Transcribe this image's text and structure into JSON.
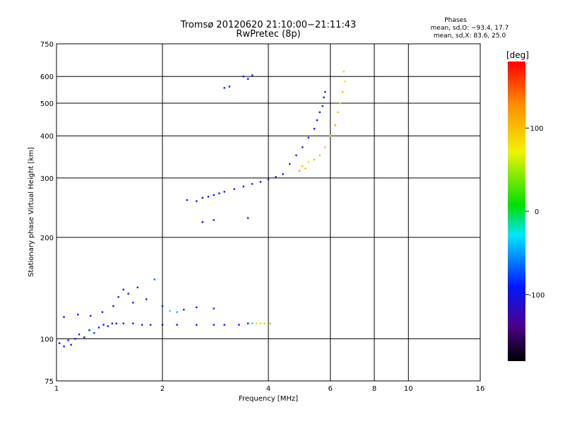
{
  "chart_data": {
    "type": "scatter",
    "title": "Tromsø 20120620 21:10:00−21:11:43",
    "subtitle": "RwPretec (8p)",
    "xlabel": "Frequency [MHz]",
    "ylabel": "Stationary phase Virtual Height [km]",
    "x_scale": "log",
    "y_scale": "log",
    "xlim": [
      1,
      16
    ],
    "ylim": [
      75,
      750
    ],
    "x_ticks": [
      1,
      2,
      4,
      6,
      8,
      10,
      16
    ],
    "y_ticks": [
      75,
      100,
      200,
      300,
      400,
      500,
      600,
      750
    ],
    "grid": true,
    "stats_box": {
      "title": "Phases",
      "line1": "mean, sd,O: −93.4, 17.7",
      "line2": "mean, sd,X:  83.6, 25.0"
    },
    "colorbar": {
      "label": "[deg]",
      "ticks": [
        100,
        0,
        -100
      ],
      "range": [
        -180,
        180
      ]
    },
    "series": [
      {
        "points": [
          [
            1.02,
            97,
            -90
          ],
          [
            1.05,
            95,
            -100
          ],
          [
            1.08,
            99,
            -85
          ],
          [
            1.1,
            96,
            -95
          ],
          [
            1.13,
            100,
            -92
          ],
          [
            1.16,
            103,
            -88
          ],
          [
            1.2,
            101,
            -100
          ],
          [
            1.24,
            106,
            -90
          ],
          [
            1.28,
            104,
            -80
          ],
          [
            1.32,
            108,
            -95
          ],
          [
            1.36,
            110,
            -98
          ],
          [
            1.4,
            109,
            -90
          ],
          [
            1.44,
            111,
            -95
          ],
          [
            1.48,
            111,
            -100
          ],
          [
            1.55,
            111,
            -95
          ],
          [
            1.65,
            111,
            -98
          ],
          [
            1.75,
            110,
            -100
          ],
          [
            1.85,
            110,
            -95
          ],
          [
            2.0,
            110,
            -100
          ],
          [
            2.2,
            110,
            -92
          ],
          [
            2.5,
            110,
            -98
          ],
          [
            2.8,
            110,
            -95
          ],
          [
            3.0,
            110,
            -100
          ],
          [
            3.3,
            110,
            -95
          ],
          [
            3.5,
            111,
            -90
          ],
          [
            3.6,
            111,
            -20
          ],
          [
            3.7,
            111,
            60
          ],
          [
            3.8,
            111,
            90
          ],
          [
            3.9,
            111,
            100
          ],
          [
            4.05,
            111,
            110
          ],
          [
            1.05,
            116,
            -90
          ],
          [
            1.15,
            118,
            -100
          ],
          [
            1.25,
            117,
            -85
          ],
          [
            1.35,
            120,
            -95
          ],
          [
            1.45,
            125,
            -100
          ],
          [
            1.5,
            133,
            -85
          ],
          [
            1.55,
            140,
            -90
          ],
          [
            1.6,
            136,
            -100
          ],
          [
            1.65,
            128,
            -95
          ],
          [
            1.7,
            142,
            -88
          ],
          [
            1.8,
            131,
            -100
          ],
          [
            1.9,
            150,
            -60
          ],
          [
            2.0,
            125,
            -90
          ],
          [
            2.1,
            121,
            -30
          ],
          [
            2.2,
            120,
            -40
          ],
          [
            2.3,
            122,
            -95
          ],
          [
            2.5,
            124,
            -90
          ],
          [
            2.8,
            123,
            -85
          ],
          [
            2.35,
            258,
            -100
          ],
          [
            2.5,
            256,
            -95
          ],
          [
            2.6,
            262,
            -90
          ],
          [
            2.7,
            264,
            -100
          ],
          [
            2.8,
            267,
            -95
          ],
          [
            2.9,
            270,
            -100
          ],
          [
            3.0,
            273,
            -95
          ],
          [
            3.2,
            278,
            -90
          ],
          [
            3.4,
            283,
            -120
          ],
          [
            3.6,
            288,
            -100
          ],
          [
            3.8,
            292,
            -110
          ],
          [
            4.0,
            297,
            -100
          ],
          [
            4.2,
            302,
            -95
          ],
          [
            4.4,
            308,
            -90
          ],
          [
            2.6,
            222,
            -90
          ],
          [
            2.8,
            225,
            -95
          ],
          [
            3.5,
            228,
            -100
          ],
          [
            3.4,
            600,
            -95
          ],
          [
            3.5,
            590,
            -90
          ],
          [
            3.6,
            605,
            -100
          ],
          [
            3.0,
            555,
            -90
          ],
          [
            3.1,
            560,
            -95
          ],
          [
            4.6,
            330,
            -95
          ],
          [
            4.8,
            350,
            -90
          ],
          [
            5.0,
            370,
            -95
          ],
          [
            5.2,
            395,
            -100
          ],
          [
            5.4,
            420,
            -90
          ],
          [
            5.5,
            445,
            -95
          ],
          [
            5.6,
            470,
            -100
          ],
          [
            5.7,
            490,
            -90
          ],
          [
            5.75,
            520,
            -95
          ],
          [
            5.8,
            540,
            -88
          ],
          [
            5.0,
            325,
            100
          ],
          [
            5.2,
            335,
            90
          ],
          [
            5.4,
            340,
            100
          ],
          [
            5.6,
            350,
            110
          ],
          [
            5.8,
            370,
            100
          ],
          [
            6.0,
            400,
            90
          ],
          [
            6.2,
            430,
            120
          ],
          [
            6.3,
            470,
            100
          ],
          [
            6.4,
            500,
            90
          ],
          [
            6.5,
            540,
            100
          ],
          [
            6.6,
            580,
            80
          ],
          [
            6.55,
            620,
            90
          ],
          [
            4.9,
            315,
            120
          ],
          [
            5.1,
            320,
            100
          ]
        ]
      }
    ]
  }
}
